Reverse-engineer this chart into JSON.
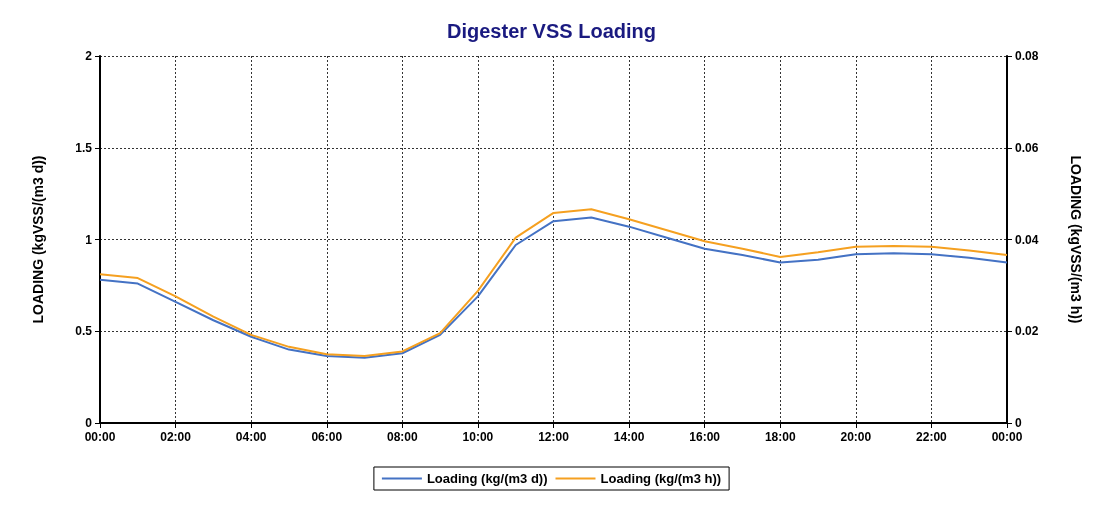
{
  "chart_data": {
    "type": "line",
    "title": "Digester VSS Loading",
    "ylabel": "LOADING (kgVSS/(m3 d))",
    "y2label": "LOADING (kgVSS/(m3 h))",
    "x": [
      0,
      1,
      2,
      3,
      4,
      5,
      6,
      7,
      8,
      9,
      10,
      11,
      12,
      13,
      14,
      15,
      16,
      17,
      18,
      19,
      20,
      21,
      22,
      23,
      24
    ],
    "series": [
      {
        "name": "Loading (kg/(m3 d))",
        "color": "#4472c4",
        "values": [
          0.78,
          0.76,
          0.66,
          0.56,
          0.47,
          0.4,
          0.365,
          0.355,
          0.38,
          0.48,
          0.69,
          0.97,
          1.1,
          1.12,
          1.07,
          1.01,
          0.95,
          0.915,
          0.875,
          0.89,
          0.92,
          0.925,
          0.92,
          0.9,
          0.875
        ]
      },
      {
        "name": "Loading (kg/(m3 h))",
        "color": "#f5a020",
        "axis": "y2",
        "values": [
          0.0324,
          0.0316,
          0.0276,
          0.0232,
          0.0192,
          0.0166,
          0.015,
          0.0146,
          0.0156,
          0.0196,
          0.0288,
          0.0404,
          0.0458,
          0.0466,
          0.0444,
          0.042,
          0.0396,
          0.038,
          0.0362,
          0.0372,
          0.0384,
          0.0386,
          0.0384,
          0.0376,
          0.0366
        ]
      }
    ],
    "xlim": [
      0,
      24
    ],
    "xticks": [
      {
        "value": 0,
        "label": "00:00"
      },
      {
        "value": 2,
        "label": "02:00"
      },
      {
        "value": 4,
        "label": "04:00"
      },
      {
        "value": 6,
        "label": "06:00"
      },
      {
        "value": 8,
        "label": "08:00"
      },
      {
        "value": 10,
        "label": "10:00"
      },
      {
        "value": 12,
        "label": "12:00"
      },
      {
        "value": 14,
        "label": "14:00"
      },
      {
        "value": 16,
        "label": "16:00"
      },
      {
        "value": 18,
        "label": "18:00"
      },
      {
        "value": 20,
        "label": "20:00"
      },
      {
        "value": 22,
        "label": "22:00"
      },
      {
        "value": 24,
        "label": "00:00"
      }
    ],
    "ylim": [
      0,
      2
    ],
    "yticks": [
      0,
      0.5,
      1,
      1.5,
      2
    ],
    "y2lim": [
      0,
      0.08
    ],
    "y2ticks": [
      0,
      0.02,
      0.04,
      0.06,
      0.08
    ],
    "grid": true,
    "legend": "bottom",
    "marker": "none",
    "line_style": "solid"
  }
}
